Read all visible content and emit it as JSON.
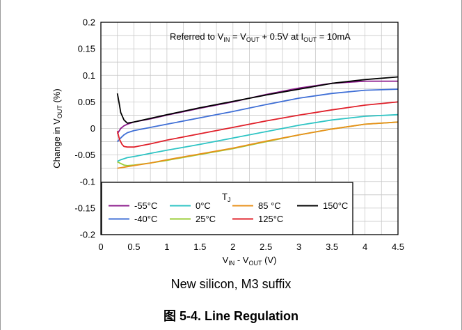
{
  "chart_data": {
    "type": "line",
    "annotation_parts": [
      "Referred to V",
      "IN",
      " = V",
      "OUT",
      " + 0.5V at I",
      "OUT",
      " = 10mA"
    ],
    "ylabel_parts": [
      "Change in V",
      "OUT",
      " (%)"
    ],
    "xlabel_parts": [
      "V",
      "IN",
      " - V",
      "OUT",
      " (V)"
    ],
    "xlim": [
      0,
      4.5
    ],
    "ylim": [
      -0.2,
      0.2
    ],
    "x_ticks": [
      0,
      0.5,
      1,
      1.5,
      2,
      2.5,
      3,
      3.5,
      4,
      4.5
    ],
    "x_tick_labels": [
      "0",
      "0.5",
      "1",
      "1.5",
      "2",
      "2.5",
      "3",
      "3.5",
      "4",
      "4.5"
    ],
    "y_ticks": [
      -0.2,
      -0.15,
      -0.1,
      -0.05,
      0,
      0.05,
      0.1,
      0.15,
      0.2
    ],
    "y_tick_labels": [
      "-0.2",
      "-0.15",
      "-0.1",
      "-0.05",
      "0",
      "0.05",
      "0.1",
      "0.15",
      "0.2"
    ],
    "grid": true,
    "legend_title_parts": [
      "T",
      "J"
    ],
    "legend_position": "bottom-left",
    "series": [
      {
        "name": "-55°C",
        "color": "#8b1a8b",
        "points": [
          [
            0.25,
            -0.01
          ],
          [
            0.3,
            0.0
          ],
          [
            0.35,
            0.005
          ],
          [
            0.4,
            0.008
          ],
          [
            0.5,
            0.012
          ],
          [
            0.75,
            0.018
          ],
          [
            1.0,
            0.025
          ],
          [
            1.5,
            0.038
          ],
          [
            2.0,
            0.05
          ],
          [
            2.5,
            0.064
          ],
          [
            3.0,
            0.076
          ],
          [
            3.5,
            0.085
          ],
          [
            4.0,
            0.089
          ],
          [
            4.5,
            0.089
          ]
        ]
      },
      {
        "name": "-40°C",
        "color": "#3f6fd6",
        "points": [
          [
            0.25,
            -0.025
          ],
          [
            0.3,
            -0.018
          ],
          [
            0.35,
            -0.012
          ],
          [
            0.4,
            -0.008
          ],
          [
            0.5,
            -0.004
          ],
          [
            0.75,
            0.002
          ],
          [
            1.0,
            0.008
          ],
          [
            1.5,
            0.02
          ],
          [
            2.0,
            0.032
          ],
          [
            2.5,
            0.045
          ],
          [
            3.0,
            0.057
          ],
          [
            3.5,
            0.066
          ],
          [
            4.0,
            0.072
          ],
          [
            4.5,
            0.074
          ]
        ]
      },
      {
        "name": "0°C",
        "color": "#2ec4c4",
        "points": [
          [
            0.25,
            -0.062
          ],
          [
            0.3,
            -0.059
          ],
          [
            0.35,
            -0.057
          ],
          [
            0.4,
            -0.055
          ],
          [
            0.5,
            -0.053
          ],
          [
            0.75,
            -0.047
          ],
          [
            1.0,
            -0.041
          ],
          [
            1.5,
            -0.03
          ],
          [
            2.0,
            -0.018
          ],
          [
            2.5,
            -0.006
          ],
          [
            3.0,
            0.006
          ],
          [
            3.5,
            0.016
          ],
          [
            4.0,
            0.023
          ],
          [
            4.5,
            0.026
          ]
        ]
      },
      {
        "name": "25°C",
        "color": "#99cc33",
        "points": [
          [
            0.25,
            -0.063
          ],
          [
            0.3,
            -0.066
          ],
          [
            0.35,
            -0.069
          ],
          [
            0.4,
            -0.07
          ],
          [
            0.5,
            -0.069
          ],
          [
            0.75,
            -0.065
          ],
          [
            1.0,
            -0.06
          ],
          [
            1.5,
            -0.049
          ],
          [
            2.0,
            -0.038
          ],
          [
            2.5,
            -0.025
          ],
          [
            3.0,
            -0.012
          ],
          [
            3.5,
            -0.001
          ],
          [
            4.0,
            0.008
          ],
          [
            4.5,
            0.012
          ]
        ]
      },
      {
        "name": "85 °C",
        "color": "#e8901a",
        "points": [
          [
            0.25,
            -0.075
          ],
          [
            0.3,
            -0.074
          ],
          [
            0.35,
            -0.073
          ],
          [
            0.4,
            -0.072
          ],
          [
            0.5,
            -0.07
          ],
          [
            0.75,
            -0.065
          ],
          [
            1.0,
            -0.059
          ],
          [
            1.5,
            -0.048
          ],
          [
            2.0,
            -0.037
          ],
          [
            2.5,
            -0.024
          ],
          [
            3.0,
            -0.012
          ],
          [
            3.5,
            -0.001
          ],
          [
            4.0,
            0.008
          ],
          [
            4.5,
            0.012
          ]
        ]
      },
      {
        "name": "125°C",
        "color": "#e0202a",
        "points": [
          [
            0.25,
            -0.005
          ],
          [
            0.28,
            -0.02
          ],
          [
            0.32,
            -0.03
          ],
          [
            0.35,
            -0.034
          ],
          [
            0.4,
            -0.035
          ],
          [
            0.5,
            -0.035
          ],
          [
            0.75,
            -0.029
          ],
          [
            1.0,
            -0.022
          ],
          [
            1.5,
            -0.01
          ],
          [
            2.0,
            0.002
          ],
          [
            2.5,
            0.014
          ],
          [
            3.0,
            0.025
          ],
          [
            3.5,
            0.035
          ],
          [
            4.0,
            0.044
          ],
          [
            4.5,
            0.05
          ]
        ]
      },
      {
        "name": "150°C",
        "color": "#000000",
        "points": [
          [
            0.25,
            0.066
          ],
          [
            0.28,
            0.045
          ],
          [
            0.3,
            0.03
          ],
          [
            0.35,
            0.016
          ],
          [
            0.4,
            0.01
          ],
          [
            0.5,
            0.012
          ],
          [
            0.75,
            0.019
          ],
          [
            1.0,
            0.026
          ],
          [
            1.5,
            0.039
          ],
          [
            2.0,
            0.051
          ],
          [
            2.5,
            0.063
          ],
          [
            3.0,
            0.074
          ],
          [
            3.5,
            0.085
          ],
          [
            4.0,
            0.092
          ],
          [
            4.5,
            0.097
          ]
        ]
      }
    ]
  },
  "caption_subtitle": "New silicon, M3 suffix",
  "figure_caption": "图 5-4. Line Regulation"
}
